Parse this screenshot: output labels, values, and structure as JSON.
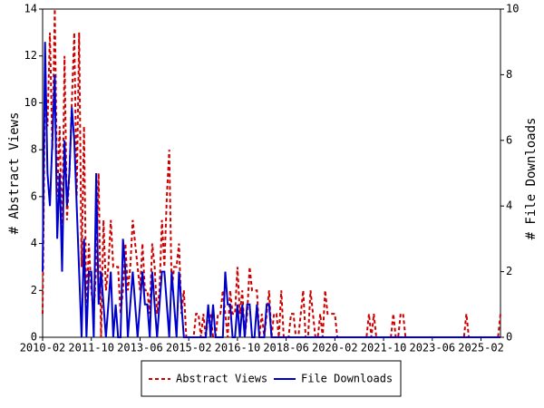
{
  "chart_data": {
    "type": "line",
    "y_label": "# Abstract Views",
    "y2_label": "# File Downloads",
    "x": [
      "2010-02",
      "2010-03",
      "2010-04",
      "2010-05",
      "2010-06",
      "2010-07",
      "2010-08",
      "2010-09",
      "2010-10",
      "2010-11",
      "2010-12",
      "2011-01",
      "2011-02",
      "2011-03",
      "2011-04",
      "2011-05",
      "2011-06",
      "2011-07",
      "2011-08",
      "2011-09",
      "2011-10",
      "2011-11",
      "2011-12",
      "2012-01",
      "2012-02",
      "2012-03",
      "2012-04",
      "2012-05",
      "2012-06",
      "2012-07",
      "2012-08",
      "2012-09",
      "2012-10",
      "2012-11",
      "2012-12",
      "2013-01",
      "2013-02",
      "2013-03",
      "2013-04",
      "2013-05",
      "2013-06",
      "2013-07",
      "2013-08",
      "2013-09",
      "2013-10",
      "2013-11",
      "2013-12",
      "2014-01",
      "2014-02",
      "2014-03",
      "2014-04",
      "2014-05",
      "2014-06",
      "2014-07",
      "2014-08",
      "2014-09",
      "2014-10",
      "2014-11",
      "2014-12",
      "2015-01",
      "2015-02",
      "2015-03",
      "2015-04",
      "2015-05",
      "2015-06",
      "2015-07",
      "2015-08",
      "2015-09",
      "2015-10",
      "2015-11",
      "2015-12",
      "2016-01",
      "2016-02",
      "2016-03",
      "2016-04",
      "2016-05",
      "2016-06",
      "2016-07",
      "2016-08",
      "2016-09",
      "2016-10",
      "2016-11",
      "2016-12",
      "2017-01",
      "2017-02",
      "2017-03",
      "2017-04",
      "2017-05",
      "2017-06",
      "2017-07",
      "2017-08",
      "2017-09",
      "2017-10",
      "2017-11",
      "2017-12",
      "2018-01",
      "2018-02",
      "2018-03",
      "2018-04",
      "2018-05",
      "2018-06",
      "2018-07",
      "2018-08",
      "2018-09",
      "2018-10",
      "2018-11",
      "2018-12",
      "2019-01",
      "2019-02",
      "2019-03",
      "2019-04",
      "2019-05",
      "2019-06",
      "2019-07",
      "2019-08",
      "2019-09",
      "2019-10",
      "2019-11",
      "2019-12",
      "2020-01",
      "2020-02",
      "2020-03",
      "2020-04",
      "2020-05",
      "2020-06",
      "2020-07",
      "2020-08",
      "2020-09",
      "2020-10",
      "2020-11",
      "2020-12",
      "2021-01",
      "2021-02",
      "2021-03",
      "2021-04",
      "2021-05",
      "2021-06",
      "2021-07",
      "2021-08",
      "2021-09",
      "2021-10",
      "2021-11",
      "2021-12",
      "2022-01",
      "2022-02",
      "2022-03",
      "2022-04",
      "2022-05",
      "2022-06",
      "2022-07",
      "2022-08",
      "2022-09",
      "2022-10",
      "2022-11",
      "2022-12",
      "2023-01",
      "2023-02",
      "2023-03",
      "2023-04",
      "2023-05",
      "2023-06",
      "2023-07",
      "2023-08",
      "2023-09",
      "2023-10",
      "2023-11",
      "2023-12",
      "2024-01",
      "2024-02",
      "2024-03",
      "2024-04",
      "2024-05",
      "2024-06",
      "2024-07",
      "2024-08",
      "2024-09",
      "2024-10",
      "2024-11",
      "2024-12",
      "2025-01",
      "2025-02",
      "2025-03",
      "2025-04",
      "2025-05",
      "2025-06",
      "2025-07",
      "2025-08",
      "2025-09",
      "2025-10"
    ],
    "xticks": [
      "2010-02",
      "2011-10",
      "2013-06",
      "2015-02",
      "2016-10",
      "2018-06",
      "2020-02",
      "2021-10",
      "2023-06",
      "2025-02"
    ],
    "ylim": [
      0,
      14
    ],
    "yticks": [
      0,
      2,
      4,
      6,
      8,
      10,
      12,
      14
    ],
    "y2lim": [
      0,
      10
    ],
    "y2ticks": [
      0,
      2,
      4,
      6,
      8,
      10
    ],
    "series": [
      {
        "name": "Abstract Views",
        "color": "#cc0000",
        "dashed": true,
        "values": [
          1,
          11,
          9,
          13,
          8,
          14,
          6,
          9,
          4,
          12,
          5,
          7,
          10,
          13,
          6,
          13,
          3,
          9,
          1,
          4,
          2,
          1,
          3,
          7,
          0,
          5,
          2,
          3,
          5,
          3,
          3,
          3,
          1,
          2,
          4,
          2,
          3,
          5,
          4,
          3,
          2,
          4,
          2,
          2,
          1,
          4,
          3,
          1,
          2,
          5,
          3,
          6,
          8,
          2,
          3,
          3,
          4,
          1,
          2,
          0,
          0,
          0,
          0,
          1,
          1,
          0,
          1,
          0,
          1,
          1,
          0,
          0,
          1,
          1,
          2,
          1,
          0,
          2,
          1,
          1,
          3,
          1,
          2,
          0,
          1,
          3,
          2,
          2,
          2,
          0,
          1,
          0,
          1,
          2,
          0,
          1,
          1,
          0,
          2,
          0,
          0,
          0,
          1,
          1,
          0,
          0,
          1,
          2,
          0,
          0,
          2,
          1,
          0,
          0,
          1,
          0,
          2,
          1,
          1,
          1,
          1,
          0,
          0,
          0,
          0,
          0,
          0,
          0,
          0,
          0,
          0,
          0,
          0,
          0,
          1,
          0,
          1,
          0,
          0,
          0,
          0,
          0,
          0,
          0,
          1,
          0,
          0,
          1,
          1,
          0,
          0,
          0,
          0,
          0,
          0,
          0,
          0,
          0,
          0,
          0,
          0,
          0,
          0,
          0,
          0,
          0,
          0,
          0,
          0,
          0,
          0,
          0,
          0,
          0,
          1,
          0,
          0,
          0,
          0,
          0,
          0,
          0,
          0,
          0,
          0,
          0,
          0,
          0,
          1
        ]
      },
      {
        "name": "File Downloads",
        "color": "#0000cc",
        "dashed": false,
        "axis": "y2",
        "values": [
          2,
          9,
          5,
          4,
          6,
          8,
          3,
          5,
          2,
          6,
          4,
          5,
          7,
          6,
          4,
          2,
          0,
          3,
          0,
          2,
          2,
          0,
          5,
          1,
          2,
          1,
          0,
          1,
          2,
          0,
          1,
          0,
          0,
          3,
          2,
          0,
          1,
          2,
          1,
          0,
          1,
          2,
          1,
          1,
          0,
          2,
          1,
          0,
          1,
          2,
          2,
          1,
          0,
          2,
          1,
          0,
          2,
          1,
          0,
          0,
          0,
          0,
          0,
          0,
          0,
          0,
          0,
          0,
          1,
          0,
          1,
          0,
          0,
          0,
          0,
          2,
          1,
          1,
          0,
          0,
          1,
          0,
          1,
          0,
          1,
          1,
          0,
          0,
          1,
          0,
          0,
          0,
          1,
          1,
          0,
          0,
          0,
          0,
          0,
          0,
          0,
          0,
          0,
          0,
          0,
          0,
          0,
          0,
          0,
          0,
          0,
          0,
          0,
          0,
          0,
          0,
          0,
          0,
          0,
          0,
          0,
          0,
          0,
          0,
          0,
          0,
          0,
          0,
          0,
          0,
          0,
          0,
          0,
          0,
          0,
          0,
          0,
          0,
          0,
          0,
          0,
          0,
          0,
          0,
          0,
          0,
          0,
          0,
          0,
          0,
          0,
          0,
          0,
          0,
          0,
          0,
          0,
          0,
          0,
          0,
          0,
          0,
          0,
          0,
          0,
          0,
          0,
          0,
          0,
          0,
          0,
          0,
          0,
          0,
          0,
          0,
          0,
          0,
          0,
          0,
          0,
          0,
          0,
          0,
          0,
          0,
          0,
          0,
          0
        ]
      }
    ]
  }
}
